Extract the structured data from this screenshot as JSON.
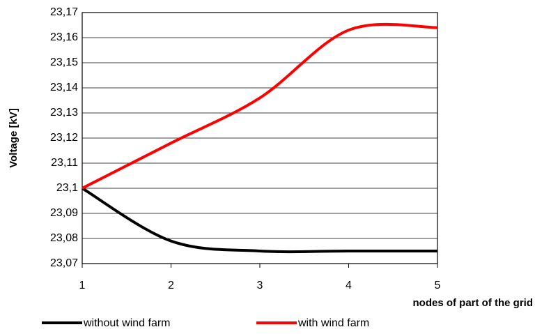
{
  "chart_data": {
    "type": "line",
    "x_label": "nodes of part of the grid",
    "y_label": "Voltage [kV]",
    "x": [
      1,
      2,
      3,
      4,
      5
    ],
    "series": [
      {
        "name": "without wind farm",
        "color": "#000000",
        "values": [
          23.1,
          23.079,
          23.075,
          23.075,
          23.075
        ]
      },
      {
        "name": "with wind farm",
        "color": "#ff0000",
        "values": [
          23.1,
          23.118,
          23.136,
          23.163,
          23.164
        ]
      }
    ],
    "xlim": [
      1,
      5
    ],
    "xticks": [
      1,
      2,
      3,
      4,
      5
    ],
    "ylim": [
      23.07,
      23.17
    ],
    "yticks": [
      {
        "value": 23.07,
        "label": "23,07"
      },
      {
        "value": 23.08,
        "label": "23,08"
      },
      {
        "value": 23.09,
        "label": "23,09"
      },
      {
        "value": 23.1,
        "label": "23,1"
      },
      {
        "value": 23.11,
        "label": "23,11"
      },
      {
        "value": 23.12,
        "label": "23,12"
      },
      {
        "value": 23.13,
        "label": "23,13"
      },
      {
        "value": 23.14,
        "label": "23,14"
      },
      {
        "value": 23.15,
        "label": "23,15"
      },
      {
        "value": 23.16,
        "label": "23,16"
      },
      {
        "value": 23.17,
        "label": "23,17"
      }
    ],
    "grid": true,
    "legend": "bottom"
  }
}
